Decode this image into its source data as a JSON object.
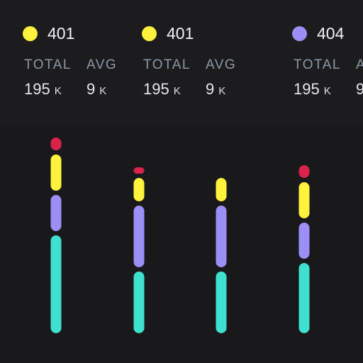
{
  "legend": [
    {
      "code": "401",
      "color": "#fff23c",
      "total_label": "TOTAL",
      "avg_label": "AVG",
      "total": "195",
      "total_unit": "K",
      "avg": "9",
      "avg_unit": "K"
    },
    {
      "code": "401",
      "color": "#fff23c",
      "total_label": "TOTAL",
      "avg_label": "AVG",
      "total": "195",
      "total_unit": "K",
      "avg": "9",
      "avg_unit": "K"
    },
    {
      "code": "404",
      "color": "#9b8ff5",
      "total_label": "TOTAL",
      "avg_label": "A",
      "total": "195",
      "total_unit": "K",
      "avg": "9",
      "avg_unit": ""
    }
  ],
  "chart_data": {
    "type": "bar",
    "stacked": true,
    "categories": [
      "",
      "",
      "",
      ""
    ],
    "series": [
      {
        "color": "#3fe0d0",
        "values": [
          46,
          29,
          29,
          33
        ]
      },
      {
        "color": "#9b8ff5",
        "values": [
          17,
          29,
          29,
          17
        ]
      },
      {
        "color": "#fff23c",
        "values": [
          17,
          11,
          11,
          17
        ]
      },
      {
        "color": "#d9234d",
        "values": [
          6,
          3,
          0,
          6
        ]
      }
    ],
    "grid": false
  }
}
